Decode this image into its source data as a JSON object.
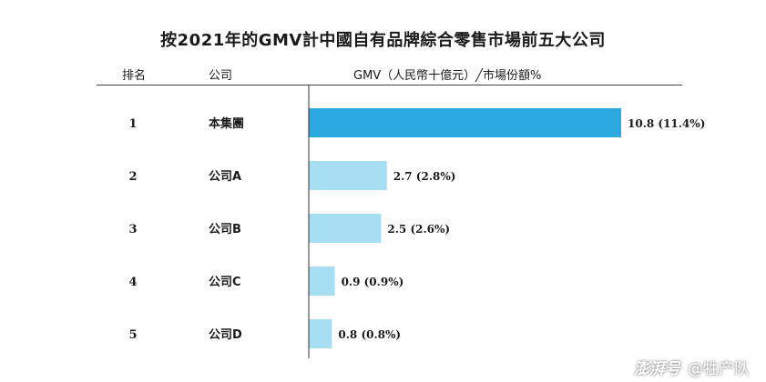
{
  "chart_data": {
    "type": "bar",
    "orientation": "horizontal",
    "title": "按2021年的GMV計中國自有品牌綜合零售市場前五大公司",
    "columns": {
      "rank": "排名",
      "company": "公司",
      "metric": "GMV（人民幣十億元）╱市場份額%"
    },
    "ranks": [
      "1",
      "2",
      "3",
      "4",
      "5"
    ],
    "categories": [
      "本集團",
      "公司A",
      "公司B",
      "公司C",
      "公司D"
    ],
    "values": [
      10.8,
      2.7,
      2.5,
      0.9,
      0.8
    ],
    "value_labels": [
      "10.8 (11.4%)",
      "2.7 (2.8%)",
      "2.5 (2.6%)",
      "0.9 (0.9%)",
      "0.8 (0.8%)"
    ],
    "xlim": [
      0,
      10.8
    ],
    "grid": false,
    "legend": "none",
    "colors": {
      "highlight": "#29a9e0",
      "default": "#a8def3",
      "axis": "#333333"
    }
  },
  "watermark": {
    "logo": "澎湃号",
    "handle": "@牲产队"
  }
}
